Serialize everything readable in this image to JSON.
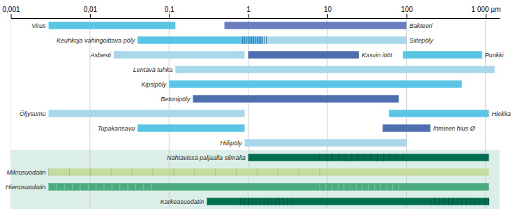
{
  "chart_data": {
    "type": "range",
    "orientation": "horizontal",
    "log": "x",
    "grid": true,
    "xlim": [
      0.001,
      1500
    ],
    "xticks": [
      {
        "value": 0.001,
        "label": "0,001"
      },
      {
        "value": 0.01,
        "label": "0,01"
      },
      {
        "value": 0.1,
        "label": "0,1"
      },
      1,
      10,
      100,
      {
        "value": 1000,
        "label": "1 000 μm"
      }
    ],
    "rows": [
      {
        "bars": [
          {
            "name": "Virus",
            "color": "#5bc5e5",
            "values": [
              0.003,
              0.12
            ]
          },
          {
            "name": "Bakteeri",
            "color": "#6b7dbf",
            "values": [
              0.5,
              100
            ]
          }
        ],
        "stripes": []
      },
      {
        "bars": [
          {
            "name": "Keuhkoja vahingoittava pöly",
            "color": "#5bc5e5",
            "values": [
              0.04,
              1.5
            ]
          },
          {
            "name": "Siitepöly",
            "color": "#a8d8ea",
            "values": [
              1.5,
              100
            ]
          }
        ],
        "stripes": [
          {
            "color": "#3e6db5",
            "values": [
              0.85,
              1.7
            ]
          }
        ]
      },
      {
        "bars": [
          {
            "name": "Asbesti",
            "color": "#a8d8ea",
            "values": [
              0.02,
              0.9
            ]
          },
          {
            "name": "Kasvin itiöt",
            "color": "#4e6faf",
            "values": [
              1.0,
              25
            ]
          },
          {
            "name": "Punkki",
            "color": "#5bc5e5",
            "values": [
              90,
              900
            ]
          }
        ],
        "stripes": []
      },
      {
        "bars": [
          {
            "name": "Lentävä tuhka",
            "color": "#a8d8ea",
            "values": [
              0.12,
              1300
            ]
          }
        ],
        "stripes": []
      },
      {
        "bars": [
          {
            "name": "Kipsipöly",
            "color": "#5bc5e5",
            "values": [
              0.1,
              500
            ]
          }
        ],
        "stripes": []
      },
      {
        "bars": [
          {
            "name": "Betonipöly",
            "color": "#4e6faf",
            "values": [
              0.2,
              80
            ]
          }
        ],
        "stripes": []
      },
      {
        "bars": [
          {
            "name": "Öljysumu",
            "color": "#a8d8ea",
            "values": [
              0.003,
              0.9
            ]
          },
          {
            "name": "Hiekka",
            "color": "#5bc5e5",
            "values": [
              60,
              1100
            ]
          }
        ],
        "stripes": []
      },
      {
        "bars": [
          {
            "name": "Tupakansavu",
            "color": "#5bc5e5",
            "values": [
              0.04,
              0.9
            ]
          },
          {
            "name": "Ihmisen hius Ø",
            "color": "#4e6faf",
            "values": [
              50,
              200
            ]
          }
        ],
        "stripes": []
      },
      {
        "bars": [
          {
            "name": "Hiilipöly",
            "color": "#a8d8ea",
            "values": [
              0.9,
              100
            ]
          }
        ],
        "stripes": []
      },
      {
        "color": "#dceee8",
        "bars": [
          {
            "name": "Nähtävissä paljaalla silmällä",
            "color": "#006e50",
            "values": [
              1.0,
              1100
            ]
          }
        ],
        "stripes": [
          {
            "color": "#005040",
            "values": [
              8.0,
              90
            ]
          }
        ]
      },
      {
        "color": "#dceee8",
        "bars": [
          {
            "name": "Mikrosuodatin",
            "color": "#c5dba0",
            "values": [
              0.003,
              1100
            ]
          }
        ],
        "stripes": [
          {
            "color": "#a0c878",
            "values": [
              0.003,
              8.0
            ]
          }
        ]
      },
      {
        "color": "#dceee8",
        "bars": [
          {
            "name": "Hienosuodatin",
            "color": "#4aaa80",
            "values": [
              0.003,
              1100
            ]
          }
        ],
        "stripes": [
          {
            "color": "#80c8a0",
            "values": [
              0.003,
              0.06
            ]
          },
          {
            "color": "#80c8a0",
            "values": [
              8.0,
              80
            ]
          }
        ]
      },
      {
        "color": "#dceee8",
        "bars": [
          {
            "name": "Karkeasuodatin",
            "color": "#007050",
            "values": [
              0.3,
              1100
            ]
          }
        ],
        "stripes": [
          {
            "color": "#005040",
            "values": [
              0.8,
              3.5
            ]
          },
          {
            "color": "#005040",
            "values": [
              200,
              1100
            ]
          }
        ]
      }
    ]
  }
}
